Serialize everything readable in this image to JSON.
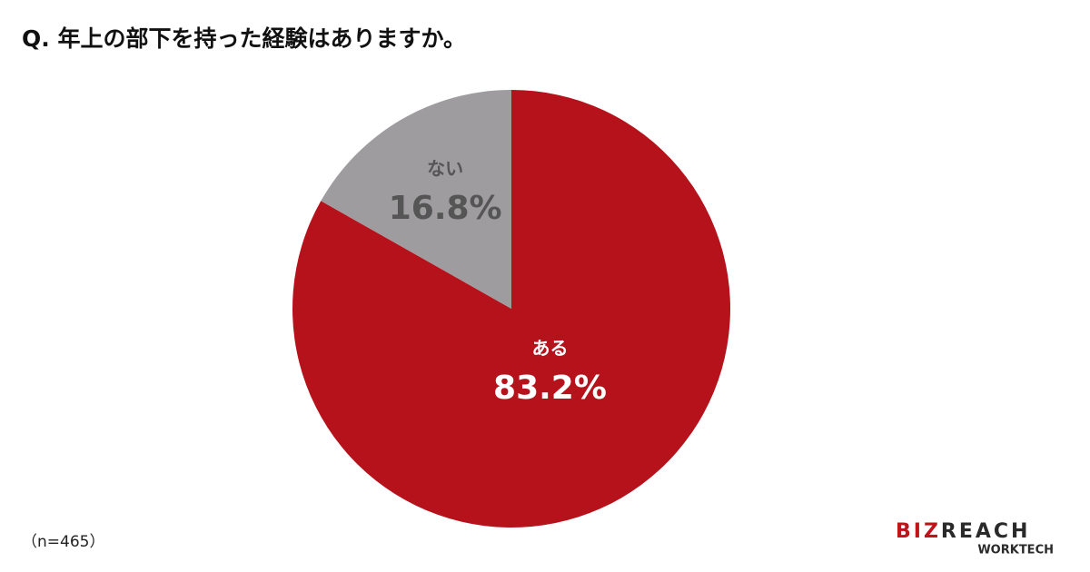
{
  "chart_data": {
    "type": "pie",
    "title": "Q. 年上の部下を持った経験はありますか。",
    "categories": [
      "ある",
      "ない"
    ],
    "values": [
      83.2,
      16.8
    ],
    "value_labels": [
      "83.2%",
      "16.8%"
    ],
    "colors": [
      "#b5121b",
      "#9e9c9f"
    ],
    "note": "（n=465）"
  },
  "brand": {
    "name_parts": [
      "BIZ",
      "REACH"
    ],
    "sub": "WORKTECH"
  }
}
